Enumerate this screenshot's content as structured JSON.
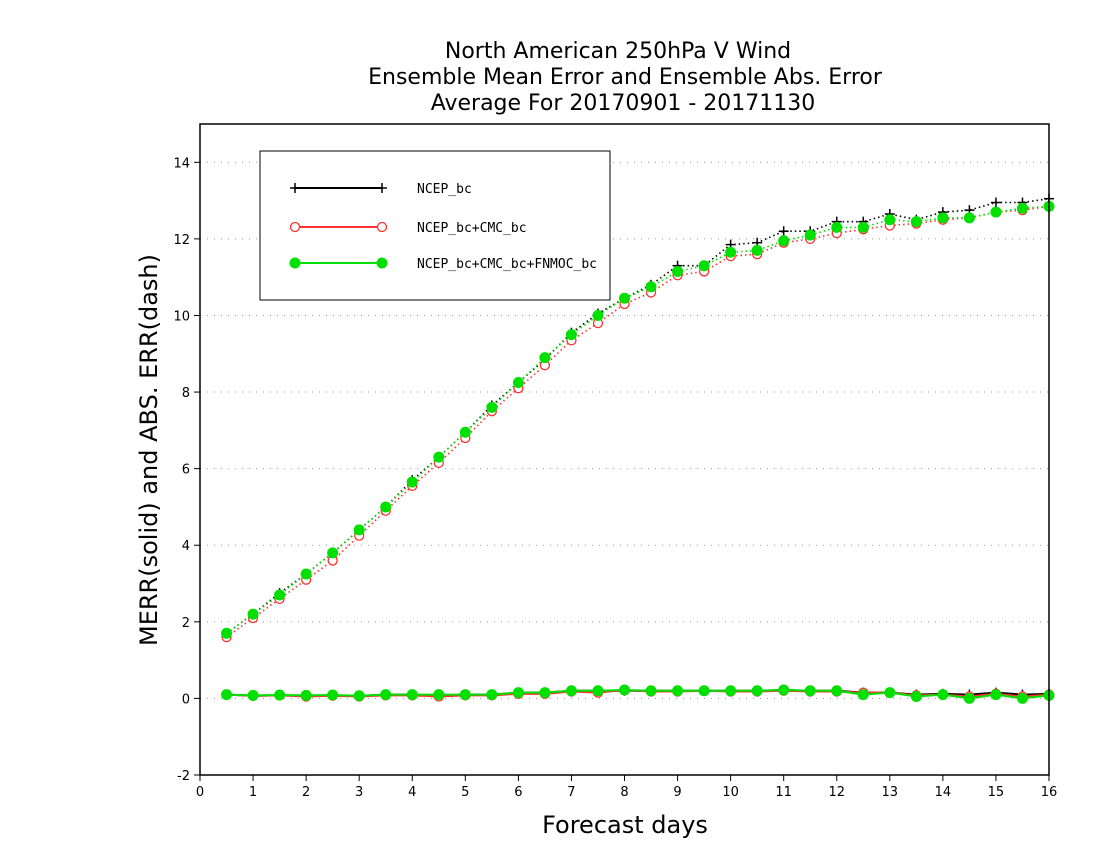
{
  "chart_data": {
    "type": "line",
    "title": [
      "North American 250hPa V Wind",
      "Ensemble Mean Error and Ensemble Abs. Error",
      "Average For 20170901 - 20171130"
    ],
    "xlabel": "Forecast days",
    "ylabel": "MERR(solid) and ABS. ERR(dash)",
    "xlim": [
      0,
      16
    ],
    "ylim": [
      -2,
      15
    ],
    "xticks": [
      "0",
      "1",
      "2",
      "3",
      "4",
      "5",
      "6",
      "7",
      "8",
      "9",
      "10",
      "11",
      "12",
      "13",
      "14",
      "15",
      "16"
    ],
    "yticks": [
      "-2",
      "0",
      "2",
      "4",
      "6",
      "8",
      "10",
      "12",
      "14"
    ],
    "grid": "y-dotted",
    "legend_position": "top-left",
    "x": [
      0.5,
      1,
      1.5,
      2,
      2.5,
      3,
      3.5,
      4,
      4.5,
      5,
      5.5,
      6,
      6.5,
      7,
      7.5,
      8,
      8.5,
      9,
      9.5,
      10,
      10.5,
      11,
      11.5,
      12,
      12.5,
      13,
      13.5,
      14,
      14.5,
      15,
      15.5,
      16
    ],
    "series": [
      {
        "name": "NCEP_bc",
        "color": "#000000",
        "marker": "plus",
        "merr": [
          0.1,
          0.07,
          0.08,
          0.07,
          0.08,
          0.06,
          0.1,
          0.1,
          0.07,
          0.1,
          0.1,
          0.15,
          0.15,
          0.2,
          0.2,
          0.2,
          0.2,
          0.2,
          0.2,
          0.2,
          0.2,
          0.22,
          0.2,
          0.2,
          0.15,
          0.15,
          0.1,
          0.12,
          0.1,
          0.15,
          0.1,
          0.12
        ],
        "abs_err": [
          1.7,
          2.2,
          2.75,
          3.25,
          3.8,
          4.4,
          5.0,
          5.7,
          6.3,
          6.95,
          7.65,
          8.25,
          8.85,
          9.55,
          10.05,
          10.45,
          10.8,
          11.3,
          11.3,
          11.85,
          11.9,
          12.2,
          12.2,
          12.45,
          12.45,
          12.65,
          12.5,
          12.7,
          12.75,
          12.95,
          12.95,
          13.05
        ]
      },
      {
        "name": "NCEP_bc+CMC_bc",
        "color": "#ff3030",
        "marker": "open-circle",
        "merr": [
          0.1,
          0.07,
          0.08,
          0.05,
          0.07,
          0.05,
          0.08,
          0.08,
          0.05,
          0.08,
          0.08,
          0.12,
          0.12,
          0.18,
          0.15,
          0.22,
          0.18,
          0.18,
          0.2,
          0.18,
          0.18,
          0.2,
          0.18,
          0.18,
          0.15,
          0.15,
          0.08,
          0.1,
          0.05,
          0.12,
          0.05,
          0.1
        ],
        "abs_err": [
          1.6,
          2.1,
          2.6,
          3.1,
          3.6,
          4.25,
          4.9,
          5.55,
          6.15,
          6.8,
          7.5,
          8.1,
          8.7,
          9.35,
          9.8,
          10.3,
          10.6,
          11.05,
          11.15,
          11.55,
          11.6,
          11.9,
          12.0,
          12.15,
          12.25,
          12.35,
          12.4,
          12.5,
          12.55,
          12.7,
          12.75,
          12.85
        ]
      },
      {
        "name": "NCEP_bc+CMC_bc+FNMOC_bc",
        "color": "#00e000",
        "marker": "filled-circle",
        "merr": [
          0.1,
          0.08,
          0.09,
          0.08,
          0.09,
          0.07,
          0.1,
          0.1,
          0.1,
          0.1,
          0.1,
          0.15,
          0.15,
          0.2,
          0.2,
          0.22,
          0.2,
          0.2,
          0.2,
          0.2,
          0.2,
          0.22,
          0.2,
          0.2,
          0.1,
          0.15,
          0.05,
          0.1,
          0.0,
          0.1,
          0.0,
          0.08
        ],
        "abs_err": [
          1.7,
          2.2,
          2.7,
          3.25,
          3.8,
          4.4,
          5.0,
          5.65,
          6.3,
          6.95,
          7.6,
          8.25,
          8.9,
          9.5,
          10.0,
          10.45,
          10.75,
          11.15,
          11.3,
          11.65,
          11.7,
          11.95,
          12.1,
          12.3,
          12.3,
          12.5,
          12.45,
          12.55,
          12.55,
          12.7,
          12.8,
          12.85
        ]
      }
    ]
  }
}
